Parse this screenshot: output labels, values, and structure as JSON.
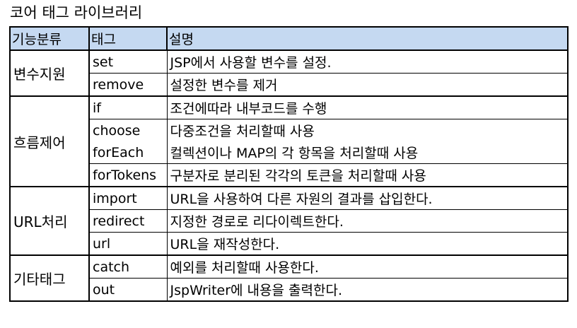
{
  "caption": "코어 태그 라이브러리",
  "headers": [
    "기능분류",
    "태그",
    "설명"
  ],
  "groups": [
    {
      "category": "변수지원",
      "rows": [
        {
          "tag": "set",
          "desc": "JSP에서 사용할 변수를 설정."
        },
        {
          "tag": "remove",
          "desc": "설정한 변수를 제거"
        }
      ]
    },
    {
      "category": "흐름제어",
      "rows": [
        {
          "tag": "if",
          "desc": "조건에따라 내부코드를 수행"
        },
        {
          "tag": "choose",
          "desc": "다중조건을 처리할때 사용"
        },
        {
          "tag": "forEach",
          "desc": "컬렉션이나 MAP의 각 항목을 처리할때 사용"
        },
        {
          "tag": "forTokens",
          "desc": "구분자로 분리된 각각의 토큰을 처리할때 사용"
        }
      ]
    },
    {
      "category": "URL처리",
      "rows": [
        {
          "tag": "import",
          "desc": "URL을 사용하여 다른 자원의 결과를 삽입한다."
        },
        {
          "tag": "redirect",
          "desc": "지정한 경로로 리다이렉트한다."
        },
        {
          "tag": "url",
          "desc": "URL을 재작성한다."
        }
      ]
    },
    {
      "category": "기타태그",
      "rows": [
        {
          "tag": "catch",
          "desc": "예외를 처리할때 사용한다."
        },
        {
          "tag": "out",
          "desc": "JspWriter에 내용을 출력한다."
        }
      ]
    }
  ]
}
